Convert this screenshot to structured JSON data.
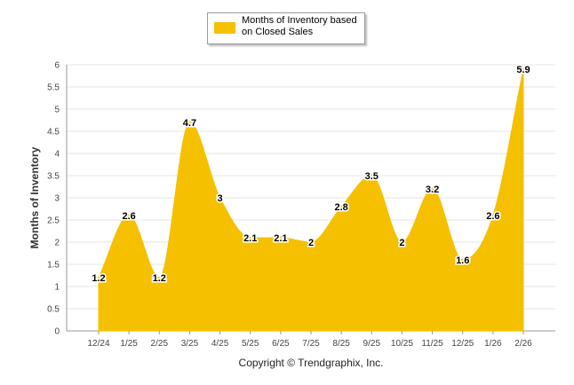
{
  "chart_data": {
    "type": "area",
    "title": "",
    "xlabel": "",
    "ylabel": "Months of Inventory",
    "ylim": [
      0,
      6
    ],
    "yticks": [
      "0",
      "0.5",
      "1",
      "1.5",
      "2",
      "2.5",
      "3",
      "3.5",
      "4",
      "4.5",
      "5",
      "5.5",
      "6"
    ],
    "categories": [
      "12/24",
      "1/25",
      "2/25",
      "3/25",
      "4/25",
      "5/25",
      "6/25",
      "7/25",
      "8/25",
      "9/25",
      "10/25",
      "11/25",
      "12/25",
      "1/26",
      "2/26"
    ],
    "series": [
      {
        "name": "Months of Inventory based on Closed Sales",
        "values": [
          1.2,
          2.6,
          1.2,
          4.7,
          3,
          2.1,
          2.1,
          2,
          2.8,
          3.5,
          2,
          3.2,
          1.6,
          2.6,
          5.9
        ],
        "labels": [
          "1.2",
          "2.6",
          "1.2",
          "4.7",
          "3",
          "2.1",
          "2.1",
          "2",
          "2.8",
          "3.5",
          "2",
          "3.2",
          "1.6",
          "2.6",
          "5.9"
        ]
      }
    ],
    "grid": true,
    "legend": "top-center"
  },
  "legend": {
    "label": "Months of Inventory based on Closed Sales"
  },
  "footer": {
    "text": "Copyright © Trendgraphix, Inc."
  },
  "colors": {
    "series": "#F5C000",
    "grid": "#e6e6e6",
    "axis": "#999999"
  }
}
